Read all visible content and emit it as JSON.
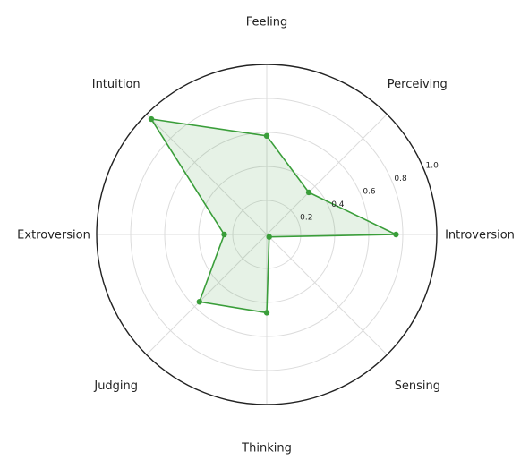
{
  "chart_data": {
    "type": "radar",
    "categories": [
      "Introversion",
      "Perceiving",
      "Feeling",
      "Intuition",
      "Extroversion",
      "Judging",
      "Thinking",
      "Sensing"
    ],
    "series": [
      {
        "values": [
          0.76,
          0.35,
          0.58,
          0.96,
          0.25,
          0.56,
          0.46,
          0.02
        ],
        "color": "#3a9e3a",
        "fill_color": "#3a9e3a",
        "fill_opacity": 0.13
      }
    ],
    "rticks": [
      0.2,
      0.4,
      0.6,
      0.8,
      1.0
    ],
    "rtick_labels": [
      "0.2",
      "0.4",
      "0.6",
      "0.8",
      "1.0"
    ],
    "rlim": [
      0,
      1.0
    ],
    "grid": true
  }
}
